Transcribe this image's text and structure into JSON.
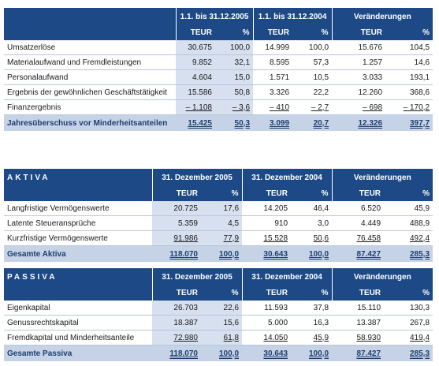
{
  "guv": {
    "periods": [
      "1.1. bis 31.12.2005",
      "1.1. bis 31.12.2004",
      "Veränderungen"
    ],
    "subheaders": [
      "TEUR",
      "%",
      "TEUR",
      "%",
      "TEUR",
      "%"
    ],
    "rows": [
      {
        "label": "Umsatzerlöse",
        "v": [
          "30.675",
          "100,0",
          "14.999",
          "100,0",
          "15.676",
          "104,5"
        ]
      },
      {
        "label": "Materialaufwand und Fremdleistungen",
        "v": [
          "9.852",
          "32,1",
          "8.595",
          "57,3",
          "1.257",
          "14,6"
        ]
      },
      {
        "label": "Personalaufwand",
        "v": [
          "4.604",
          "15,0",
          "1.571",
          "10,5",
          "3.033",
          "193,1"
        ]
      },
      {
        "label": "Ergebnis der gewöhnlichen Geschäftstätigkeit",
        "v": [
          "15.586",
          "50,8",
          "3.326",
          "22,2",
          "12.260",
          "368,6"
        ]
      },
      {
        "label": "Finanzergebnis",
        "v": [
          "– 1.108",
          "– 3,6",
          "– 410",
          "– 2,7",
          "– 698",
          "– 170,2"
        ]
      }
    ],
    "total": {
      "label": "Jahresüberschuss vor Minderheitsanteilen",
      "v": [
        "15.425",
        "50,3",
        "3.099",
        "20,7",
        "12.326",
        "397,7"
      ]
    }
  },
  "aktiva": {
    "title": "AKTIVA",
    "periods": [
      "31. Dezember 2005",
      "31. Dezember 2004",
      "Veränderungen"
    ],
    "subheaders": [
      "TEUR",
      "%",
      "TEUR",
      "%",
      "TEUR",
      "%"
    ],
    "rows": [
      {
        "label": "Langfristige Vermögenswerte",
        "v": [
          "20.725",
          "17,6",
          "14.205",
          "46,4",
          "6.520",
          "45,9"
        ]
      },
      {
        "label": "Latente Steueransprüche",
        "v": [
          "5.359",
          "4,5",
          "910",
          "3,0",
          "4.449",
          "488,9"
        ]
      },
      {
        "label": "Kurzfristige Vermögenswerte",
        "v": [
          "91.986",
          "77,9",
          "15.528",
          "50,6",
          "76.458",
          "492,4"
        ]
      }
    ],
    "total": {
      "label": "Gesamte Aktiva",
      "v": [
        "118.070",
        "100,0",
        "30.643",
        "100,0",
        "87.427",
        "285,3"
      ]
    }
  },
  "passiva": {
    "title": "PASSIVA",
    "periods": [
      "31. Dezember 2005",
      "31. Dezember 2004",
      "Veränderungen"
    ],
    "subheaders": [
      "TEUR",
      "%",
      "TEUR",
      "%",
      "TEUR",
      "%"
    ],
    "rows": [
      {
        "label": "Eigenkapital",
        "v": [
          "26.703",
          "22,6",
          "11.593",
          "37,8",
          "15.110",
          "130,3"
        ]
      },
      {
        "label": "Genussrechtskapital",
        "v": [
          "18.387",
          "15,6",
          "5.000",
          "16,3",
          "13.387",
          "267,8"
        ]
      },
      {
        "label": "Fremdkapital und Minderheitsanteile",
        "v": [
          "72.980",
          "61,8",
          "14.050",
          "45,9",
          "58.930",
          "419,4"
        ]
      }
    ],
    "total": {
      "label": "Gesamte Passiva",
      "v": [
        "118.070",
        "100,0",
        "30.643",
        "100,0",
        "87.427",
        "285,3"
      ]
    }
  }
}
